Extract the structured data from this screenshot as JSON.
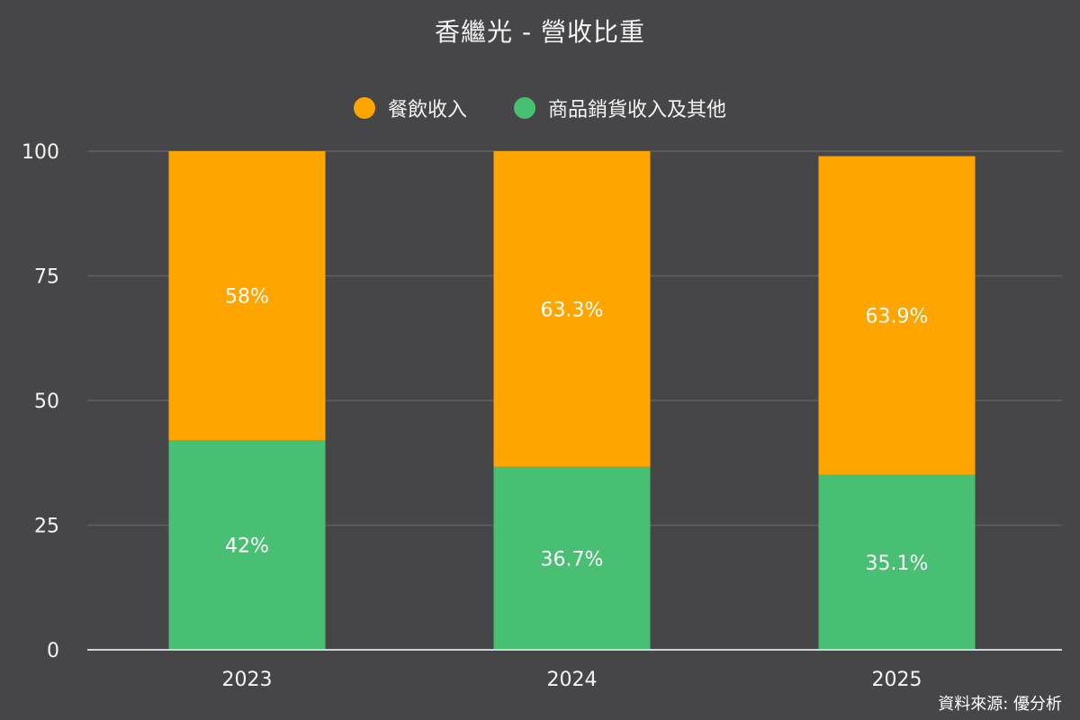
{
  "title": "香繼光 - 營收比重",
  "source": "資料來源: 優分析",
  "colors": {
    "background": "#464649",
    "gridline": "#606064",
    "axis": "#cfd3dc",
    "text": "#f4f4f4"
  },
  "legend": [
    {
      "label": "餐飲收入",
      "color": "#FFA500"
    },
    {
      "label": "商品銷貨收入及其他",
      "color": "#48BF73"
    }
  ],
  "chart_data": {
    "type": "bar",
    "stacked": true,
    "title": "香繼光 - 營收比重",
    "xlabel": "",
    "ylabel": "",
    "categories": [
      "2023",
      "2024",
      "2025"
    ],
    "ylim": [
      0,
      100
    ],
    "yticks": [
      0,
      25,
      50,
      75,
      100
    ],
    "grid": true,
    "legend_position": "top",
    "series": [
      {
        "name": "商品銷貨收入及其他",
        "color": "#48BF73",
        "values": [
          42,
          36.7,
          35.1
        ],
        "labels": [
          "42%",
          "36.7%",
          "35.1%"
        ]
      },
      {
        "name": "餐飲收入",
        "color": "#FFA500",
        "values": [
          58,
          63.3,
          63.9
        ],
        "labels": [
          "58%",
          "63.3%",
          "63.9%"
        ]
      }
    ]
  }
}
